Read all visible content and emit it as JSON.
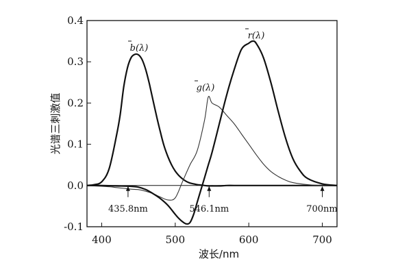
{
  "chart_data": {
    "type": "line",
    "xlabel": "波长/nm",
    "ylabel": "光谱三刺激值",
    "xlim": [
      380,
      720
    ],
    "ylim": [
      -0.1,
      0.4
    ],
    "xticks": [
      400,
      500,
      600,
      700
    ],
    "yticks": [
      -0.1,
      0.0,
      0.1,
      0.2,
      0.3,
      0.4
    ],
    "xtick_labels": [
      "400",
      "500",
      "600",
      "700"
    ],
    "ytick_labels": [
      "-0.1",
      "0.0",
      "0.1",
      "0.2",
      "0.3",
      "0.4"
    ],
    "grid": false,
    "series": [
      {
        "name": "b̄(λ)",
        "label_text": "b(λ)",
        "x": [
          380,
          390,
          400,
          410,
          420,
          425,
          430,
          435,
          440,
          445,
          450,
          455,
          460,
          465,
          470,
          475,
          480,
          485,
          490,
          495,
          500,
          505,
          510,
          515,
          520,
          525,
          530,
          535,
          540,
          545,
          550,
          560,
          570,
          580,
          600,
          620,
          650,
          700,
          720
        ],
        "y": [
          0.0,
          0.002,
          0.009,
          0.04,
          0.12,
          0.17,
          0.24,
          0.285,
          0.31,
          0.318,
          0.317,
          0.305,
          0.28,
          0.245,
          0.205,
          0.165,
          0.128,
          0.095,
          0.07,
          0.05,
          0.035,
          0.024,
          0.016,
          0.01,
          0.006,
          0.004,
          0.002,
          0.001,
          0.0,
          -0.001,
          -0.001,
          -0.001,
          0.0,
          0.0,
          0.0,
          0.0,
          0.0,
          0.0,
          0.0
        ],
        "stroke": "#111111",
        "weight": "bold"
      },
      {
        "name": "ḡ(λ)",
        "label_text": "g(λ)",
        "x": [
          380,
          390,
          400,
          410,
          420,
          430,
          440,
          450,
          460,
          470,
          480,
          490,
          500,
          510,
          520,
          530,
          540,
          545,
          550,
          560,
          570,
          580,
          590,
          600,
          610,
          620,
          630,
          640,
          650,
          660,
          680,
          700,
          720
        ],
        "y": [
          0.0,
          -0.001,
          -0.002,
          -0.003,
          -0.005,
          -0.007,
          -0.009,
          -0.01,
          -0.014,
          -0.02,
          -0.028,
          -0.035,
          -0.03,
          0.01,
          0.05,
          0.085,
          0.16,
          0.215,
          0.2,
          0.19,
          0.17,
          0.15,
          0.125,
          0.1,
          0.075,
          0.052,
          0.034,
          0.022,
          0.013,
          0.007,
          0.002,
          0.0,
          0.0
        ],
        "stroke": "#333333",
        "weight": "light"
      },
      {
        "name": "r̄(λ)",
        "label_text": "r(λ)",
        "x": [
          380,
          400,
          420,
          440,
          450,
          460,
          470,
          480,
          490,
          500,
          505,
          510,
          515,
          520,
          525,
          530,
          535,
          540,
          545,
          550,
          560,
          570,
          580,
          590,
          600,
          605,
          610,
          620,
          630,
          640,
          650,
          660,
          670,
          680,
          700,
          720
        ],
        "y": [
          0.0,
          0.0,
          -0.001,
          -0.002,
          -0.004,
          -0.01,
          -0.02,
          -0.032,
          -0.048,
          -0.07,
          -0.08,
          -0.088,
          -0.093,
          -0.09,
          -0.07,
          -0.04,
          -0.01,
          0.02,
          0.05,
          0.08,
          0.15,
          0.22,
          0.28,
          0.33,
          0.345,
          0.35,
          0.345,
          0.31,
          0.25,
          0.18,
          0.115,
          0.065,
          0.035,
          0.017,
          0.004,
          0.0
        ],
        "stroke": "#111111",
        "weight": "bold"
      }
    ],
    "annotations": [
      {
        "text": "435.8nm",
        "x": 435.8
      },
      {
        "text": "546.1nm",
        "x": 546.1
      },
      {
        "text": "700nm",
        "x": 700
      }
    ]
  }
}
